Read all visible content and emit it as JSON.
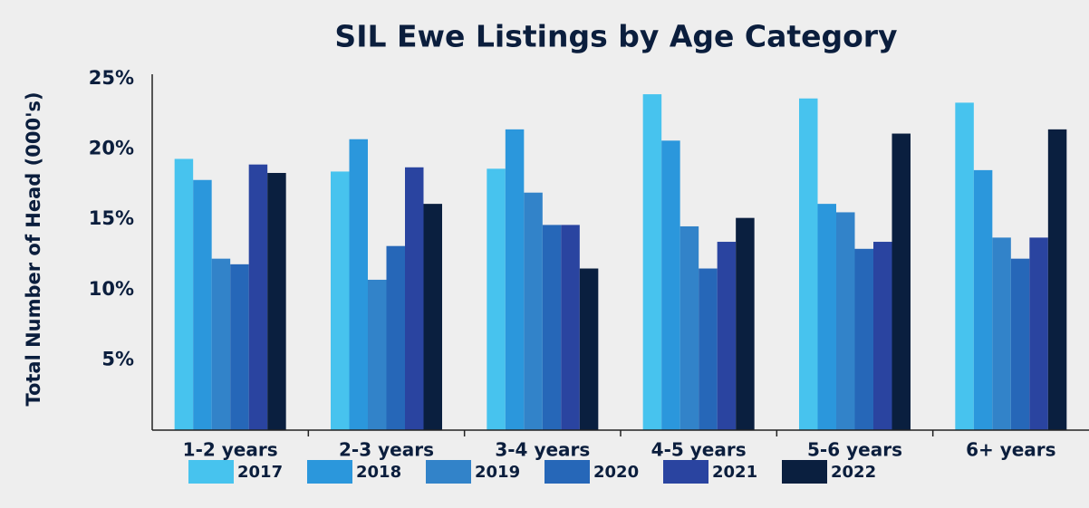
{
  "chart_data": {
    "type": "bar",
    "title": "SIL Ewe Listings by Age Category",
    "y_label": "Total Number of Head (000's)",
    "categories": [
      "1-2 years",
      "2-3 years",
      "3-4 years",
      "4-5 years",
      "5-6 years",
      "6+ years"
    ],
    "series": [
      {
        "name": "2017",
        "color": "#47c3ee",
        "values": [
          19.3,
          18.4,
          18.6,
          23.9,
          23.6,
          23.3
        ]
      },
      {
        "name": "2018",
        "color": "#2b97dc",
        "values": [
          17.8,
          20.7,
          21.4,
          20.6,
          16.1,
          18.5
        ]
      },
      {
        "name": "2019",
        "color": "#3283c9",
        "values": [
          12.2,
          10.7,
          16.9,
          14.5,
          15.5,
          13.7
        ]
      },
      {
        "name": "2020",
        "color": "#2667b8",
        "values": [
          11.8,
          13.1,
          14.6,
          11.5,
          12.9,
          12.2
        ]
      },
      {
        "name": "2021",
        "color": "#2a44a0",
        "values": [
          18.9,
          18.7,
          14.6,
          13.4,
          13.4,
          13.7
        ]
      },
      {
        "name": "2022",
        "color": "#0a1f3f",
        "values": [
          18.3,
          16.1,
          11.5,
          15.1,
          21.1,
          21.4
        ]
      }
    ],
    "ylim": [
      0,
      25
    ],
    "yticks": [
      {
        "value": 5,
        "label": "5%"
      },
      {
        "value": 10,
        "label": "10%"
      },
      {
        "value": 15,
        "label": "15%"
      },
      {
        "value": 20,
        "label": "20%"
      },
      {
        "value": 25,
        "label": "25%"
      }
    ],
    "grid": false,
    "legend": "bottom"
  }
}
